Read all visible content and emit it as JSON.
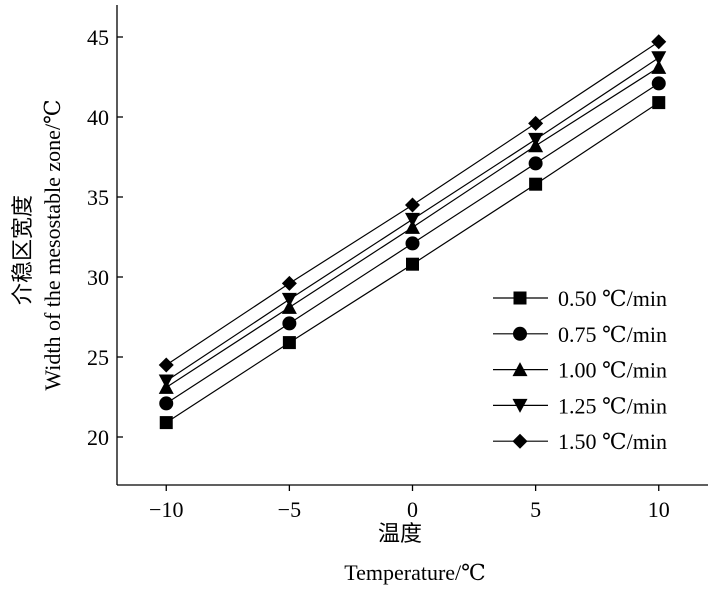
{
  "chart_data": {
    "type": "line",
    "title": "",
    "xlabel_cn": "温度",
    "xlabel": "Temperature/℃",
    "ylabel_cn": "介稳区宽度",
    "ylabel": "Width of the mesostable zone/℃",
    "x": [
      -10,
      -5,
      0,
      5,
      10
    ],
    "xlim": [
      -12,
      12
    ],
    "ylim": [
      17,
      47
    ],
    "xticks": [
      "-10",
      "-5",
      "0",
      "5",
      "10"
    ],
    "yticks": [
      "20",
      "25",
      "30",
      "35",
      "40",
      "45"
    ],
    "grid": false,
    "legend_position": "bottom-right",
    "series": [
      {
        "name": "0.50 ℃/min",
        "marker": "square",
        "values": [
          20.9,
          25.9,
          30.8,
          35.8,
          40.9
        ]
      },
      {
        "name": "0.75 ℃/min",
        "marker": "circle",
        "values": [
          22.1,
          27.1,
          32.1,
          37.1,
          42.1
        ]
      },
      {
        "name": "1.00 ℃/min",
        "marker": "triangle-up",
        "values": [
          23.1,
          28.1,
          33.1,
          38.2,
          43.1
        ]
      },
      {
        "name": "1.25 ℃/min",
        "marker": "triangle-down",
        "values": [
          23.5,
          28.6,
          33.6,
          38.6,
          43.7
        ]
      },
      {
        "name": "1.50 ℃/min",
        "marker": "diamond",
        "values": [
          24.5,
          29.6,
          34.5,
          39.6,
          44.7
        ]
      }
    ]
  }
}
